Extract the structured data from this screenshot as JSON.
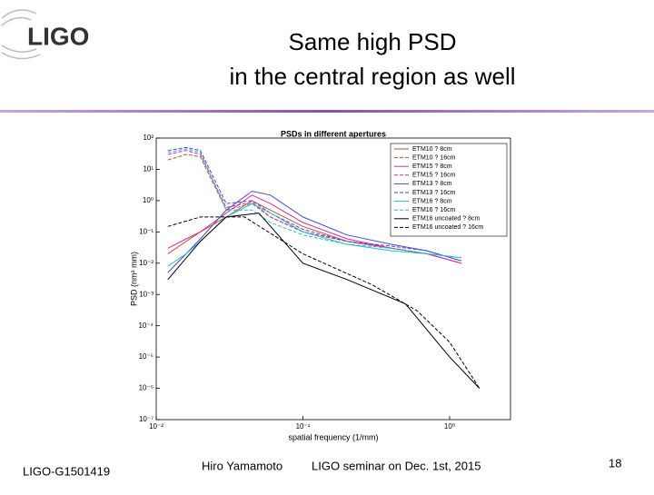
{
  "header": {
    "logo": "LIGO",
    "title": [
      "Same high PSD",
      "in the central region as well"
    ]
  },
  "footer": {
    "doc_id": "LIGO-G1501419",
    "author": "Hiro Yamamoto",
    "event": "LIGO seminar on Dec. 1st, 2015",
    "page": "18"
  },
  "chart_data": {
    "type": "line",
    "title": "PSDs in different apertures",
    "x_label": "spatial frequency (1/mm)",
    "y_label": "PSD (nm² mm)",
    "xscale": "log",
    "yscale": "log",
    "xlim": [
      0.01,
      2.6
    ],
    "ylim": [
      1e-07,
      100
    ],
    "xticks": [
      {
        "value": 0.01,
        "label": "10⁻²"
      },
      {
        "value": 0.1,
        "label": "10⁻¹"
      },
      {
        "value": 1,
        "label": "10⁰"
      }
    ],
    "yticks": [
      {
        "value": 1e-07,
        "label": "10⁻⁷"
      },
      {
        "value": 1e-06,
        "label": "10⁻⁶"
      },
      {
        "value": 1e-05,
        "label": "10⁻⁵"
      },
      {
        "value": 0.0001,
        "label": "10⁻⁴"
      },
      {
        "value": 0.001,
        "label": "10⁻³"
      },
      {
        "value": 0.01,
        "label": "10⁻²"
      },
      {
        "value": 0.1,
        "label": "10⁻¹"
      },
      {
        "value": 1,
        "label": "10⁰"
      },
      {
        "value": 10,
        "label": "10¹"
      },
      {
        "value": 100,
        "label": "10²"
      }
    ],
    "legend": "upper right",
    "series": [
      {
        "name": "ETM10 ? 8cm",
        "color": "#b5553a",
        "dash": false,
        "x": [
          0.012,
          0.016,
          0.02,
          0.03,
          0.045,
          0.06,
          0.1,
          0.2,
          0.4,
          0.7,
          1.2
        ],
        "values": [
          0.02,
          0.05,
          0.1,
          0.3,
          1,
          0.5,
          0.15,
          0.05,
          0.03,
          0.02,
          0.01
        ]
      },
      {
        "name": "ETM10 ? 16cm",
        "color": "#b5553a",
        "dash": true,
        "x": [
          0.012,
          0.016,
          0.02,
          0.03,
          0.045,
          0.06,
          0.1,
          0.2,
          0.4,
          0.7,
          1.2
        ],
        "values": [
          20,
          30,
          25,
          0.5,
          0.8,
          0.3,
          0.1,
          0.05,
          0.03,
          0.02,
          0.01
        ]
      },
      {
        "name": "ETM15 ? 8cm",
        "color": "#d62ca0",
        "dash": false,
        "x": [
          0.012,
          0.016,
          0.02,
          0.03,
          0.045,
          0.06,
          0.1,
          0.2,
          0.4,
          0.7,
          1.2
        ],
        "values": [
          0.03,
          0.06,
          0.1,
          0.4,
          1.5,
          0.8,
          0.2,
          0.06,
          0.03,
          0.02,
          0.01
        ]
      },
      {
        "name": "ETM15 ? 16cm",
        "color": "#d62ca0",
        "dash": true,
        "x": [
          0.012,
          0.016,
          0.02,
          0.03,
          0.045,
          0.06,
          0.1,
          0.2,
          0.4,
          0.7,
          1.2
        ],
        "values": [
          30,
          40,
          30,
          0.6,
          0.9,
          0.3,
          0.1,
          0.05,
          0.03,
          0.02,
          0.01
        ]
      },
      {
        "name": "ETM13 ? 8cm",
        "color": "#4a4ac8",
        "dash": false,
        "x": [
          0.012,
          0.016,
          0.02,
          0.03,
          0.045,
          0.06,
          0.1,
          0.2,
          0.4,
          0.7,
          1.2
        ],
        "values": [
          0.005,
          0.02,
          0.06,
          0.5,
          2,
          1.5,
          0.3,
          0.08,
          0.04,
          0.025,
          0.012
        ]
      },
      {
        "name": "ETM13 ? 16cm",
        "color": "#4a4ac8",
        "dash": true,
        "x": [
          0.012,
          0.016,
          0.02,
          0.03,
          0.045,
          0.06,
          0.1,
          0.2,
          0.4,
          0.7,
          1.2
        ],
        "values": [
          40,
          50,
          40,
          0.8,
          1,
          0.4,
          0.12,
          0.05,
          0.035,
          0.025,
          0.012
        ]
      },
      {
        "name": "ETM16 ? 8cm",
        "color": "#20c0c8",
        "dash": false,
        "x": [
          0.012,
          0.016,
          0.02,
          0.03,
          0.045,
          0.06,
          0.1,
          0.2,
          0.4,
          0.7,
          1.2
        ],
        "values": [
          0.008,
          0.02,
          0.05,
          0.3,
          0.8,
          0.4,
          0.1,
          0.04,
          0.025,
          0.02,
          0.015
        ]
      },
      {
        "name": "ETM16 ? 16cm",
        "color": "#20c0c8",
        "dash": true,
        "x": [
          0.012,
          0.016,
          0.02,
          0.03,
          0.045,
          0.06,
          0.1,
          0.2,
          0.4,
          0.7,
          1.2
        ],
        "values": [
          35,
          45,
          35,
          0.5,
          0.5,
          0.2,
          0.08,
          0.04,
          0.03,
          0.02,
          0.015
        ]
      },
      {
        "name": "ETM16 uncoated ? 8cm",
        "color": "#000000",
        "dash": false,
        "x": [
          0.012,
          0.02,
          0.03,
          0.05,
          0.1,
          0.2,
          0.5,
          1,
          1.6
        ],
        "values": [
          0.003,
          0.05,
          0.3,
          0.4,
          0.01,
          0.003,
          0.0005,
          1e-05,
          1e-06
        ]
      },
      {
        "name": "ETM16 uncoated ? 16cm",
        "color": "#000000",
        "dash": true,
        "x": [
          0.012,
          0.02,
          0.04,
          0.1,
          0.3,
          0.6,
          1,
          1.6
        ],
        "values": [
          0.15,
          0.3,
          0.3,
          0.02,
          0.002,
          0.0003,
          3e-05,
          1e-06
        ]
      }
    ]
  }
}
